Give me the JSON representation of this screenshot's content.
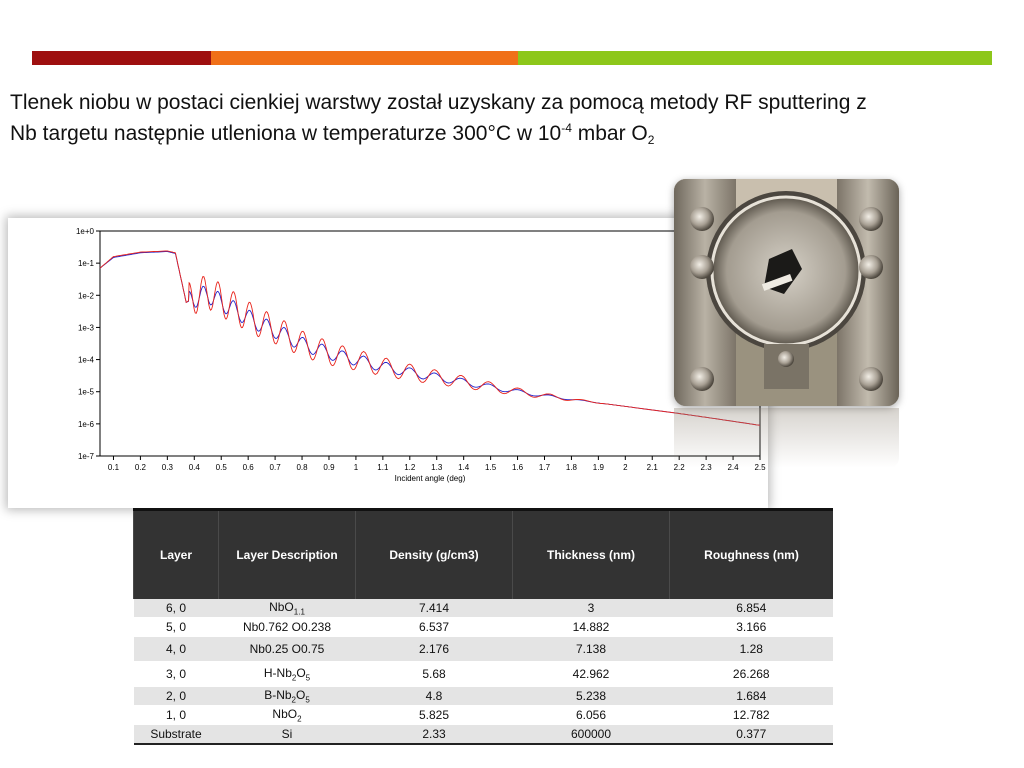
{
  "colors": {
    "bar_red": "#9e0f0f",
    "bar_orange": "#f07018",
    "bar_green": "#8dc71a",
    "series_measured": "#2222cc",
    "series_fit": "#e8241c"
  },
  "title": {
    "line1": "Tlenek niobu w postaci cienkiej warstwy został uzyskany za pomocą metody RF sputtering z",
    "line2_a": "Nb targetu następnie utleniona w temperaturze 300°C w 10",
    "line2_exp": "-4",
    "line2_b": " mbar O",
    "line2_sub": "2"
  },
  "photo": {
    "icon": "sample-holder-photo"
  },
  "chart_data": {
    "type": "line",
    "xlabel": "Incident angle (deg)",
    "ylabel": "",
    "xlim": [
      0.05,
      2.5
    ],
    "ylim_log10": [
      -7,
      0
    ],
    "yscale": "log",
    "x_ticks": [
      "0.1",
      "0.2",
      "0.3",
      "0.4",
      "0.5",
      "0.6",
      "0.7",
      "0.8",
      "0.9",
      "1",
      "1.1",
      "1.2",
      "1.3",
      "1.4",
      "1.5",
      "1.6",
      "1.7",
      "1.8",
      "1.9",
      "2",
      "2.1",
      "2.2",
      "2.3",
      "2.4",
      "2.5"
    ],
    "y_ticks": [
      "1e+0",
      "1e-1",
      "1e-2",
      "1e-3",
      "1e-4",
      "1e-5",
      "1e-6",
      "1e-7"
    ],
    "series": [
      {
        "color": "#2222cc",
        "x": [
          0.05,
          0.1,
          0.2,
          0.3,
          0.33,
          0.37,
          0.4,
          0.45,
          0.5,
          0.55,
          0.6,
          0.65,
          0.7,
          0.75,
          0.8,
          0.85,
          0.9,
          0.95,
          1.0,
          1.1,
          1.2,
          1.3,
          1.4,
          1.5,
          1.6,
          1.7,
          1.8,
          1.9,
          2.0,
          2.1,
          2.2,
          2.3,
          2.4,
          2.5
        ],
        "y": [
          0.07,
          0.15,
          0.21,
          0.23,
          0.2,
          0.006,
          0.008,
          0.011,
          0.006,
          0.0035,
          0.002,
          0.0012,
          0.0008,
          0.0005,
          0.0003,
          0.00022,
          0.00016,
          0.00012,
          0.0001,
          6e-05,
          4e-05,
          2.8e-05,
          2e-05,
          1.4e-05,
          1e-05,
          7.5e-06,
          5.8e-06,
          4.5e-06,
          3.5e-06,
          2.7e-06,
          2.1e-06,
          1.6e-06,
          1.2e-06,
          9e-07
        ]
      },
      {
        "color": "#e8241c",
        "x": [
          0.05,
          0.1,
          0.2,
          0.3,
          0.33,
          0.37,
          0.4,
          0.45,
          0.5,
          0.55,
          0.6,
          0.65,
          0.7,
          0.75,
          0.8,
          0.85,
          0.9,
          0.95,
          1.0,
          1.1,
          1.2,
          1.3,
          1.4,
          1.5,
          1.6,
          1.7,
          1.8,
          1.9,
          2.0,
          2.1,
          2.2,
          2.3,
          2.4,
          2.5
        ],
        "y": [
          0.07,
          0.16,
          0.22,
          0.24,
          0.21,
          0.006,
          0.009,
          0.013,
          0.007,
          0.004,
          0.0022,
          0.0013,
          0.00085,
          0.00052,
          0.00031,
          0.00022,
          0.00016,
          0.00012,
          0.0001,
          6e-05,
          4e-05,
          2.8e-05,
          2e-05,
          1.4e-05,
          1e-05,
          7.5e-06,
          5.8e-06,
          4.5e-06,
          3.5e-06,
          2.7e-06,
          2.1e-06,
          1.6e-06,
          1.2e-06,
          9e-07
        ]
      }
    ]
  },
  "table": {
    "headers": [
      "Layer",
      "Layer Description",
      "Density (g/cm3)",
      "Thickness (nm)",
      "Roughness (nm)"
    ],
    "rows": [
      {
        "layer": "6, 0",
        "desc_base": "NbO",
        "desc_sub": "1.1",
        "desc_mid": "",
        "desc_sub2": "",
        "density": "7.414",
        "thickness": "3",
        "roughness": "6.854"
      },
      {
        "layer": "5, 0",
        "desc_base": "Nb0.762 O0.238",
        "desc_sub": "",
        "desc_mid": "",
        "desc_sub2": "",
        "density": "6.537",
        "thickness": "14.882",
        "roughness": "3.166"
      },
      {
        "layer": "4, 0",
        "desc_base": "Nb0.25 O0.75",
        "desc_sub": "",
        "desc_mid": "",
        "desc_sub2": "",
        "density": "2.176",
        "thickness": "7.138",
        "roughness": "1.28"
      },
      {
        "layer": "3, 0",
        "desc_base": "H-Nb",
        "desc_sub": "2",
        "desc_mid": "O",
        "desc_sub2": "5",
        "density": "5.68",
        "thickness": "42.962",
        "roughness": "26.268"
      },
      {
        "layer": "2, 0",
        "desc_base": "B-Nb",
        "desc_sub": "2",
        "desc_mid": "O",
        "desc_sub2": "5",
        "density": "4.8",
        "thickness": "5.238",
        "roughness": "1.684"
      },
      {
        "layer": "1, 0",
        "desc_base": "NbO",
        "desc_sub": "2",
        "desc_mid": "",
        "desc_sub2": "",
        "density": "5.825",
        "thickness": "6.056",
        "roughness": "12.782"
      },
      {
        "layer": "Substrate",
        "desc_base": "Si",
        "desc_sub": "",
        "desc_mid": "",
        "desc_sub2": "",
        "density": "2.33",
        "thickness": "600000",
        "roughness": "0.377"
      }
    ]
  }
}
